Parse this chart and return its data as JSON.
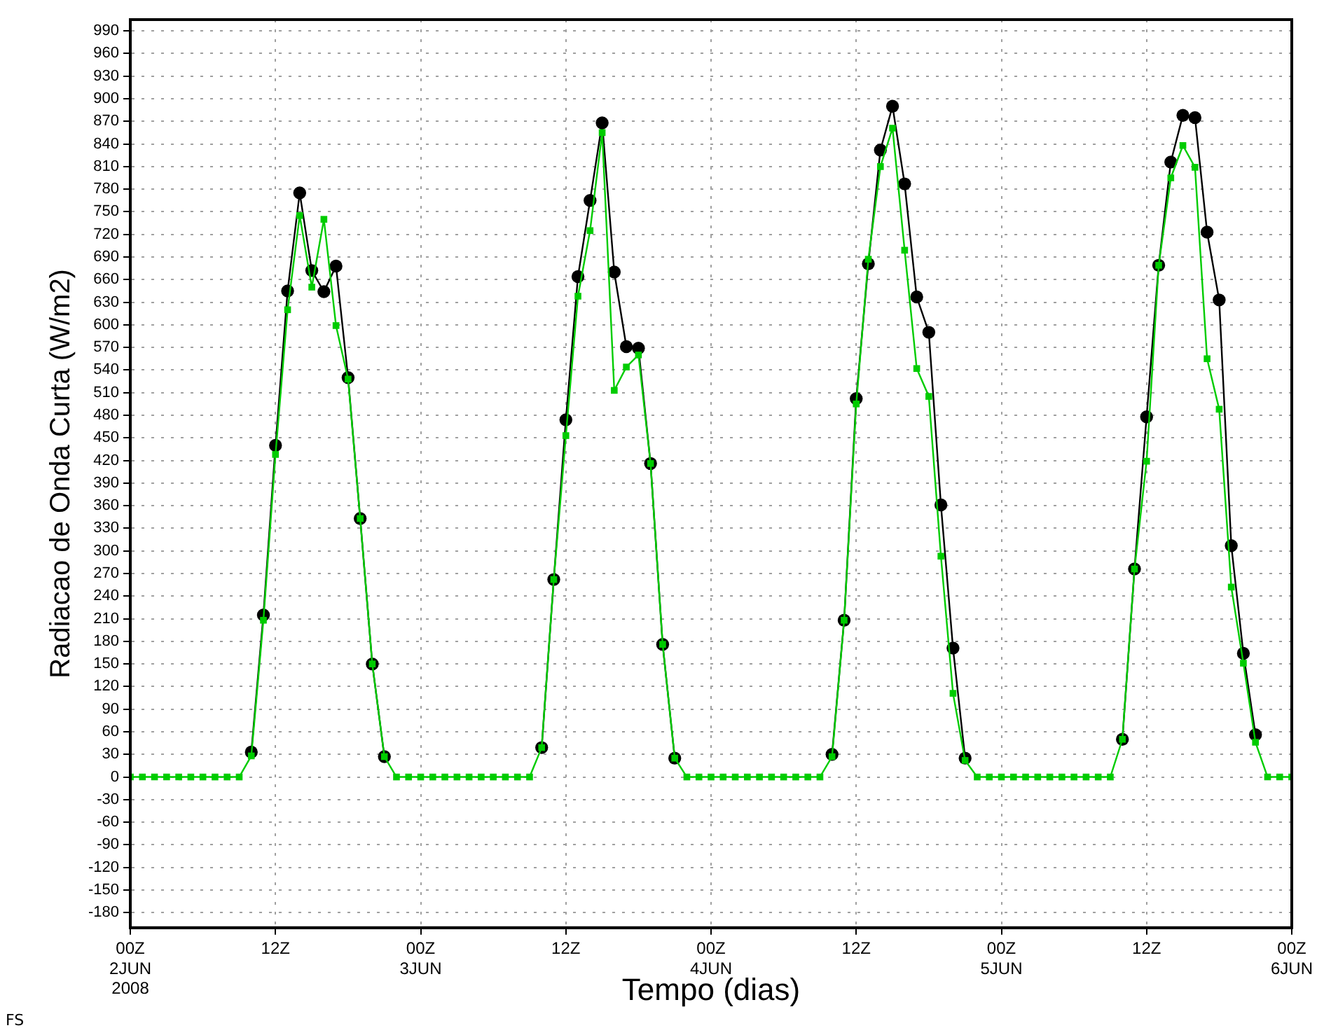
{
  "chart_data": {
    "type": "line",
    "xlabel": "Tempo (dias)",
    "ylabel": "Radiacao de Onda Curta (W/m2)",
    "annotations": [
      "FS"
    ],
    "x": [
      "2008-06-02T00:00",
      "2008-06-02T01:00",
      "2008-06-02T02:00",
      "2008-06-02T03:00",
      "2008-06-02T04:00",
      "2008-06-02T05:00",
      "2008-06-02T06:00",
      "2008-06-02T07:00",
      "2008-06-02T08:00",
      "2008-06-02T09:00",
      "2008-06-02T10:00",
      "2008-06-02T11:00",
      "2008-06-02T12:00",
      "2008-06-02T13:00",
      "2008-06-02T14:00",
      "2008-06-02T15:00",
      "2008-06-02T16:00",
      "2008-06-02T17:00",
      "2008-06-02T18:00",
      "2008-06-02T19:00",
      "2008-06-02T20:00",
      "2008-06-02T21:00",
      "2008-06-02T22:00",
      "2008-06-02T23:00",
      "2008-06-03T00:00",
      "2008-06-03T01:00",
      "2008-06-03T02:00",
      "2008-06-03T03:00",
      "2008-06-03T04:00",
      "2008-06-03T05:00",
      "2008-06-03T06:00",
      "2008-06-03T07:00",
      "2008-06-03T08:00",
      "2008-06-03T09:00",
      "2008-06-03T10:00",
      "2008-06-03T11:00",
      "2008-06-03T12:00",
      "2008-06-03T13:00",
      "2008-06-03T14:00",
      "2008-06-03T15:00",
      "2008-06-03T16:00",
      "2008-06-03T17:00",
      "2008-06-03T18:00",
      "2008-06-03T19:00",
      "2008-06-03T20:00",
      "2008-06-03T21:00",
      "2008-06-03T22:00",
      "2008-06-03T23:00",
      "2008-06-04T00:00",
      "2008-06-04T01:00",
      "2008-06-04T02:00",
      "2008-06-04T03:00",
      "2008-06-04T04:00",
      "2008-06-04T05:00",
      "2008-06-04T06:00",
      "2008-06-04T07:00",
      "2008-06-04T08:00",
      "2008-06-04T09:00",
      "2008-06-04T10:00",
      "2008-06-04T11:00",
      "2008-06-04T12:00",
      "2008-06-04T13:00",
      "2008-06-04T14:00",
      "2008-06-04T15:00",
      "2008-06-04T16:00",
      "2008-06-04T17:00",
      "2008-06-04T18:00",
      "2008-06-04T19:00",
      "2008-06-04T20:00",
      "2008-06-04T21:00",
      "2008-06-04T22:00",
      "2008-06-04T23:00",
      "2008-06-05T00:00",
      "2008-06-05T01:00",
      "2008-06-05T02:00",
      "2008-06-05T03:00",
      "2008-06-05T04:00",
      "2008-06-05T05:00",
      "2008-06-05T06:00",
      "2008-06-05T07:00",
      "2008-06-05T08:00",
      "2008-06-05T09:00",
      "2008-06-05T10:00",
      "2008-06-05T11:00",
      "2008-06-05T12:00",
      "2008-06-05T13:00",
      "2008-06-05T14:00",
      "2008-06-05T15:00",
      "2008-06-05T16:00",
      "2008-06-05T17:00",
      "2008-06-05T18:00",
      "2008-06-05T19:00",
      "2008-06-05T20:00",
      "2008-06-05T21:00",
      "2008-06-05T22:00",
      "2008-06-05T23:00",
      "2008-06-06T00:00"
    ],
    "series": [
      {
        "color": "#000000",
        "marker": "circle",
        "values": [
          null,
          null,
          null,
          null,
          null,
          null,
          null,
          null,
          null,
          null,
          33,
          215,
          440,
          645,
          775,
          672,
          644,
          678,
          530,
          343,
          150,
          27,
          null,
          null,
          null,
          null,
          null,
          null,
          null,
          null,
          null,
          null,
          null,
          null,
          39,
          262,
          474,
          664,
          765,
          868,
          670,
          571,
          569,
          416,
          176,
          25,
          null,
          null,
          null,
          null,
          null,
          null,
          null,
          null,
          null,
          null,
          null,
          null,
          30,
          208,
          502,
          681,
          832,
          890,
          787,
          637,
          590,
          361,
          171,
          25,
          null,
          null,
          null,
          null,
          null,
          null,
          null,
          null,
          null,
          null,
          null,
          null,
          50,
          276,
          478,
          679,
          816,
          878,
          875,
          723,
          633,
          307,
          164,
          56,
          null,
          null,
          null
        ]
      },
      {
        "color": "#00cc00",
        "marker": "square",
        "values": [
          0,
          0,
          0,
          0,
          0,
          0,
          0,
          0,
          0,
          0,
          28,
          208,
          428,
          620,
          745,
          650,
          740,
          599,
          528,
          343,
          150,
          27,
          0,
          0,
          0,
          0,
          0,
          0,
          0,
          0,
          0,
          0,
          0,
          0,
          39,
          262,
          453,
          638,
          725,
          855,
          513,
          544,
          560,
          416,
          176,
          25,
          0,
          0,
          0,
          0,
          0,
          0,
          0,
          0,
          0,
          0,
          0,
          0,
          27,
          208,
          495,
          687,
          810,
          861,
          699,
          542,
          505,
          293,
          111,
          22,
          0,
          0,
          0,
          0,
          0,
          0,
          0,
          0,
          0,
          0,
          0,
          0,
          50,
          276,
          419,
          679,
          795,
          838,
          809,
          555,
          488,
          252,
          151,
          46,
          0,
          0,
          0
        ]
      }
    ],
    "xlim": [
      "2008-06-02T00:00",
      "2008-06-06T00:00"
    ],
    "xticks": [
      {
        "value": "2008-06-02T00:00",
        "label": "00Z\n2JUN\n2008"
      },
      {
        "value": "2008-06-02T12:00",
        "label": "12Z"
      },
      {
        "value": "2008-06-03T00:00",
        "label": "00Z\n3JUN"
      },
      {
        "value": "2008-06-03T12:00",
        "label": "12Z"
      },
      {
        "value": "2008-06-04T00:00",
        "label": "00Z\n4JUN"
      },
      {
        "value": "2008-06-04T12:00",
        "label": "12Z"
      },
      {
        "value": "2008-06-05T00:00",
        "label": "00Z\n5JUN"
      },
      {
        "value": "2008-06-05T12:00",
        "label": "12Z"
      },
      {
        "value": "2008-06-06T00:00",
        "label": "00Z\n6JUN"
      }
    ],
    "ylim": [
      -200,
      1005
    ],
    "yticks": [
      -180,
      -150,
      -120,
      -90,
      -60,
      -30,
      0,
      30,
      60,
      90,
      120,
      150,
      180,
      210,
      240,
      270,
      300,
      330,
      360,
      390,
      420,
      450,
      480,
      510,
      540,
      570,
      600,
      630,
      660,
      690,
      720,
      750,
      780,
      810,
      840,
      870,
      900,
      930,
      960,
      990
    ],
    "grid": true,
    "legend": false
  }
}
